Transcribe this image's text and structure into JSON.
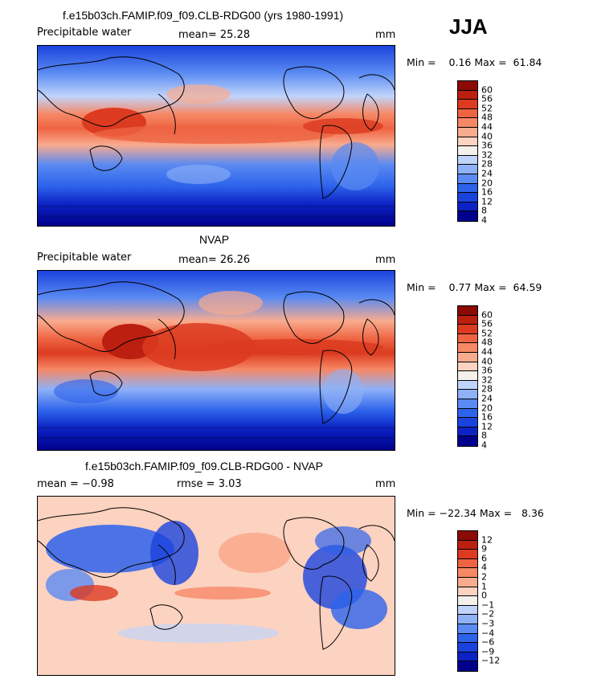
{
  "season": "JJA",
  "colors": {
    "abs_scale": [
      "#00008c",
      "#0c22c4",
      "#1a43dd",
      "#2d63eb",
      "#5a8af2",
      "#8fb1f7",
      "#c0d4fb",
      "#f4f0ec",
      "#fcd2c0",
      "#f9ab8e",
      "#f68866",
      "#ee6442",
      "#dc3b20",
      "#bb1f10",
      "#8b0a04"
    ],
    "diff_scale": [
      "#00008c",
      "#0c22c4",
      "#1a43dd",
      "#2d63eb",
      "#5a8af2",
      "#8fb1f7",
      "#c0d4fb",
      "#f4f0ec",
      "#fcd2c0",
      "#f9ab8e",
      "#f68866",
      "#ee6442",
      "#dc3b20",
      "#bb1f10",
      "#8b0a04"
    ]
  },
  "panels": [
    {
      "title": "f.e15b03ch.FAMIP.f09_f09.CLB-RDG00 (yrs 1980-1991)",
      "left_label": "Precipitable water",
      "center_label": "mean=   25.28",
      "units": "mm",
      "minmax": "Min =    0.16 Max =  61.84",
      "colorbar_labels": [
        "60",
        "56",
        "52",
        "48",
        "44",
        "40",
        "36",
        "32",
        "28",
        "24",
        "20",
        "16",
        "12",
        "8",
        "4"
      ]
    },
    {
      "title": "NVAP",
      "left_label": "Precipitable water",
      "center_label": "mean=   26.26",
      "units": "mm",
      "minmax": "Min =    0.77 Max =  64.59",
      "colorbar_labels": [
        "60",
        "56",
        "52",
        "48",
        "44",
        "40",
        "36",
        "32",
        "28",
        "24",
        "20",
        "16",
        "12",
        "8",
        "4"
      ]
    },
    {
      "title": "f.e15b03ch.FAMIP.f09_f09.CLB-RDG00 - NVAP",
      "left_label": "mean =   −0.98",
      "center_label": "rmse =    3.03",
      "units": "mm",
      "minmax": "Min = −22.34 Max =   8.36",
      "colorbar_labels": [
        "12",
        "9",
        "6",
        "4",
        "2",
        "1",
        "0",
        "−1",
        "−2",
        "−3",
        "−4",
        "−6",
        "−9",
        "−12"
      ]
    }
  ]
}
